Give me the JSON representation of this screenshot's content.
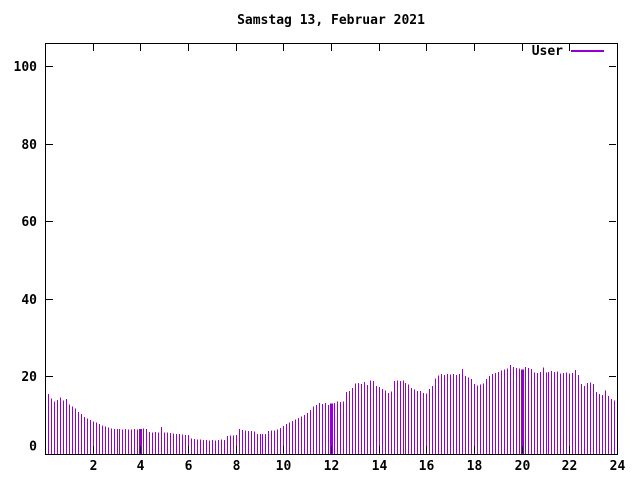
{
  "title": "Samstag 13, Februar 2021",
  "legend": {
    "label": "User"
  },
  "colors": {
    "series": "#9400d3",
    "axis": "#000000",
    "background": "#ffffff",
    "text": "#000000"
  },
  "chart_data": {
    "type": "bar",
    "style": "impulses",
    "title": "Samstag 13, Februar 2021",
    "xlabel": "",
    "ylabel": "",
    "legend_entries": [
      "User"
    ],
    "legend_position": "top-right-inside",
    "grid": false,
    "xlim": [
      0,
      24
    ],
    "ylim": [
      0,
      106
    ],
    "x_ticks": [
      2,
      4,
      6,
      8,
      10,
      12,
      14,
      16,
      18,
      20,
      22,
      24
    ],
    "y_ticks": [
      0,
      20,
      40,
      60,
      80,
      100
    ],
    "x_step_hours": 0.125,
    "wide_bars_at_hours": [
      4,
      12,
      20
    ],
    "series": [
      {
        "name": "User",
        "color": "#9400d3",
        "values": [
          15.5,
          14.3,
          13.6,
          13.9,
          14.6,
          13.8,
          14.2,
          12.8,
          12.2,
          11.7,
          10.8,
          10.3,
          9.6,
          9.2,
          8.8,
          8.4,
          8.1,
          7.8,
          7.4,
          7.1,
          6.8,
          6.6,
          6.5,
          6.4,
          6.4,
          6.3,
          6.4,
          6.3,
          6.3,
          6.4,
          6.3,
          6.4,
          6.6,
          6.5,
          5.7,
          5.6,
          5.7,
          5.6,
          7.0,
          5.6,
          5.5,
          5.4,
          5.3,
          5.2,
          5.1,
          5.0,
          4.9,
          4.9,
          4.0,
          3.9,
          3.8,
          3.7,
          3.6,
          3.6,
          3.5,
          3.6,
          3.5,
          3.6,
          3.7,
          3.6,
          4.6,
          4.8,
          4.8,
          4.9,
          6.4,
          6.2,
          6.0,
          5.9,
          5.9,
          5.8,
          5.2,
          5.1,
          5.2,
          5.1,
          5.9,
          6.0,
          6.1,
          6.3,
          6.7,
          7.2,
          7.7,
          8.1,
          8.5,
          8.9,
          9.3,
          9.7,
          10.1,
          10.6,
          11.3,
          12.2,
          12.7,
          13.2,
          12.9,
          13.1,
          12.7,
          13.0,
          13.2,
          13.5,
          13.4,
          13.6,
          16.0,
          16.2,
          17.0,
          18.2,
          18.3,
          18.0,
          18.6,
          17.8,
          18.9,
          18.8,
          17.5,
          17.3,
          16.8,
          16.4,
          15.7,
          16.1,
          18.8,
          19.0,
          18.8,
          18.9,
          18.3,
          17.9,
          17.0,
          16.6,
          16.3,
          16.2,
          15.7,
          15.6,
          16.7,
          17.6,
          19.5,
          20.3,
          20.6,
          20.4,
          20.6,
          20.5,
          20.6,
          20.4,
          20.6,
          21.9,
          20.1,
          19.7,
          19.3,
          18.1,
          17.7,
          17.9,
          18.2,
          19.3,
          20.1,
          20.6,
          20.9,
          21.2,
          21.5,
          21.8,
          22.0,
          23.0,
          22.4,
          22.2,
          22.0,
          21.8,
          22.4,
          22.2,
          21.9,
          21.0,
          20.9,
          21.1,
          22.3,
          21.0,
          21.2,
          21.4,
          21.1,
          21.3,
          20.8,
          20.9,
          21.0,
          20.7,
          20.9,
          21.6,
          20.4,
          18.0,
          17.5,
          18.3,
          18.5,
          18.0,
          16.0,
          15.5,
          15.2,
          16.4,
          15.0,
          14.2,
          13.8,
          13.6
        ]
      }
    ]
  }
}
